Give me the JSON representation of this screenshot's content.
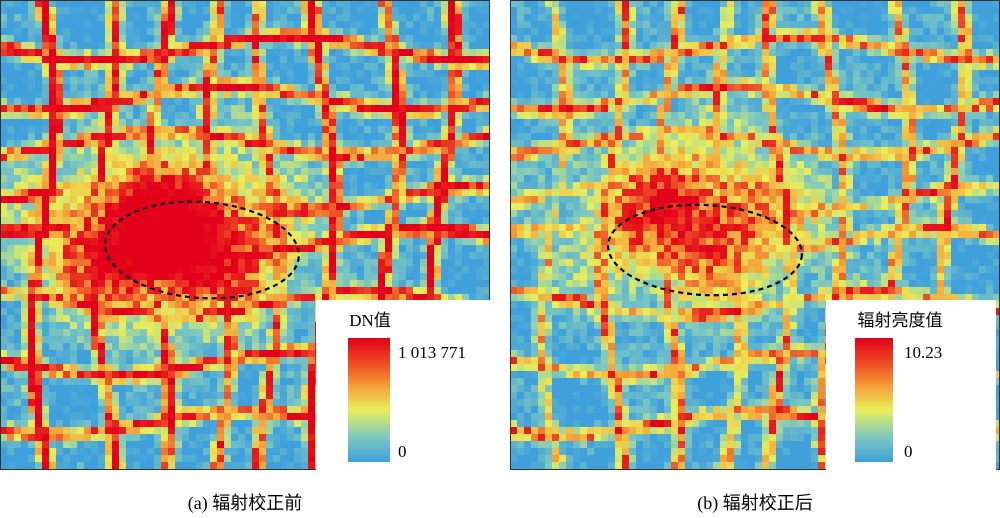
{
  "panels": [
    {
      "caption": "(a) 辐射校正前",
      "legend": {
        "title": "DN值",
        "max": {
          "value": 1013771,
          "label": "1 013 771"
        },
        "min": 0
      }
    },
    {
      "caption": "(b) 辐射校正后",
      "legend": {
        "title": "辐射亮度值",
        "max": 10.23,
        "min": 0
      }
    }
  ]
}
